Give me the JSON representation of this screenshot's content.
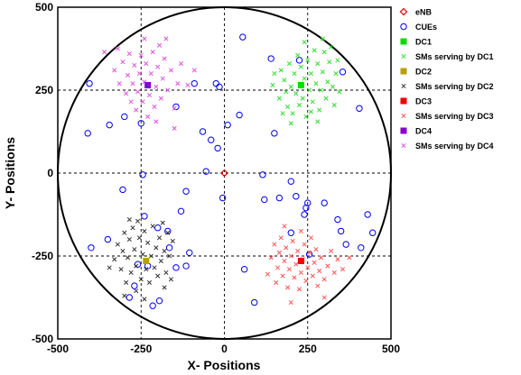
{
  "chart_data": {
    "type": "scatter",
    "xlabel": "X- Positions",
    "ylabel": "Y- Positions",
    "xlim": [
      -500,
      500
    ],
    "ylim": [
      -500,
      500
    ],
    "xticks": [
      -500,
      -250,
      0,
      250,
      500
    ],
    "yticks": [
      500,
      250,
      0,
      -250,
      -500
    ],
    "grid": "dashed at 0 and ±250",
    "boundary_circle": {
      "center": [
        0,
        0
      ],
      "radius": 500
    },
    "legend_position": "right, outside plot",
    "series": [
      {
        "name": "eNB",
        "marker": "diamond-open",
        "color": "#e60000",
        "points": [
          [
            0,
            0
          ]
        ]
      },
      {
        "name": "CUEs",
        "marker": "circle-open",
        "color": "#0000ee",
        "points": [
          [
            -410,
            120
          ],
          [
            -405,
            270
          ],
          [
            -400,
            -225
          ],
          [
            -350,
            -200
          ],
          [
            -345,
            145
          ],
          [
            -305,
            -50
          ],
          [
            -300,
            170
          ],
          [
            -285,
            -375
          ],
          [
            -270,
            -340
          ],
          [
            -250,
            150
          ],
          [
            -245,
            -5
          ],
          [
            -240,
            -130
          ],
          [
            -230,
            -280
          ],
          [
            -215,
            -400
          ],
          [
            -200,
            -165
          ],
          [
            -195,
            -385
          ],
          [
            -170,
            -175
          ],
          [
            -165,
            -225
          ],
          [
            -145,
            -285
          ],
          [
            -145,
            200
          ],
          [
            -130,
            -115
          ],
          [
            -115,
            -55
          ],
          [
            -115,
            -280
          ],
          [
            -105,
            -240
          ],
          [
            -90,
            270
          ],
          [
            -65,
            125
          ],
          [
            -55,
            5
          ],
          [
            -40,
            100
          ],
          [
            -25,
            270
          ],
          [
            -20,
            75
          ],
          [
            -15,
            260
          ],
          [
            -5,
            -75
          ],
          [
            10,
            145
          ],
          [
            45,
            175
          ],
          [
            55,
            410
          ],
          [
            60,
            -290
          ],
          [
            90,
            -390
          ],
          [
            115,
            -5
          ],
          [
            120,
            -80
          ],
          [
            140,
            345
          ],
          [
            150,
            120
          ],
          [
            165,
            -75
          ],
          [
            200,
            -25
          ],
          [
            200,
            -180
          ],
          [
            215,
            -70
          ],
          [
            225,
            340
          ],
          [
            240,
            -125
          ],
          [
            245,
            -105
          ],
          [
            255,
            -245
          ],
          [
            250,
            -90
          ],
          [
            300,
            -90
          ],
          [
            350,
            -175
          ],
          [
            355,
            305
          ],
          [
            340,
            -140
          ],
          [
            365,
            -215
          ],
          [
            405,
            195
          ],
          [
            430,
            -125
          ],
          [
            410,
            -225
          ],
          [
            445,
            -180
          ],
          [
            -260,
            -275
          ]
        ]
      },
      {
        "name": "DC1",
        "marker": "square-filled",
        "color": "#00dd00",
        "points": [
          [
            230,
            265
          ]
        ]
      },
      {
        "name": "SMs serving by DC1",
        "marker": "x",
        "color": "#33dd33",
        "points": [
          [
            145,
            265
          ],
          [
            150,
            300
          ],
          [
            165,
            225
          ],
          [
            170,
            310
          ],
          [
            180,
            280
          ],
          [
            185,
            245
          ],
          [
            190,
            200
          ],
          [
            195,
            330
          ],
          [
            200,
            260
          ],
          [
            205,
            180
          ],
          [
            210,
            300
          ],
          [
            215,
            240
          ],
          [
            220,
            355
          ],
          [
            225,
            205
          ],
          [
            230,
            320
          ],
          [
            235,
            225
          ],
          [
            240,
            285
          ],
          [
            245,
            170
          ],
          [
            250,
            340
          ],
          [
            255,
            250
          ],
          [
            260,
            300
          ],
          [
            265,
            215
          ],
          [
            270,
            370
          ],
          [
            275,
            270
          ],
          [
            280,
            330
          ],
          [
            285,
            190
          ],
          [
            290,
            250
          ],
          [
            295,
            305
          ],
          [
            300,
            365
          ],
          [
            305,
            225
          ],
          [
            310,
            275
          ],
          [
            315,
            335
          ],
          [
            320,
            380
          ],
          [
            325,
            260
          ],
          [
            330,
            205
          ],
          [
            335,
            300
          ],
          [
            340,
            340
          ],
          [
            345,
            245
          ],
          [
            260,
            185
          ],
          [
            200,
            150
          ],
          [
            175,
            180
          ],
          [
            280,
            155
          ],
          [
            240,
            395
          ],
          [
            295,
            405
          ]
        ]
      },
      {
        "name": "DC2",
        "marker": "square-filled",
        "color": "#b8a000",
        "points": [
          [
            -235,
            -265
          ]
        ]
      },
      {
        "name": "SMs serving by DC2",
        "marker": "x",
        "color": "#333333",
        "points": [
          [
            -330,
            -260
          ],
          [
            -320,
            -215
          ],
          [
            -310,
            -290
          ],
          [
            -305,
            -235
          ],
          [
            -300,
            -180
          ],
          [
            -295,
            -330
          ],
          [
            -290,
            -255
          ],
          [
            -285,
            -200
          ],
          [
            -280,
            -300
          ],
          [
            -275,
            -165
          ],
          [
            -270,
            -230
          ],
          [
            -265,
            -280
          ],
          [
            -260,
            -145
          ],
          [
            -255,
            -195
          ],
          [
            -250,
            -320
          ],
          [
            -245,
            -245
          ],
          [
            -240,
            -175
          ],
          [
            -235,
            -290
          ],
          [
            -230,
            -210
          ],
          [
            -225,
            -330
          ],
          [
            -220,
            -250
          ],
          [
            -215,
            -160
          ],
          [
            -210,
            -285
          ],
          [
            -205,
            -225
          ],
          [
            -200,
            -310
          ],
          [
            -195,
            -195
          ],
          [
            -190,
            -265
          ],
          [
            -185,
            -150
          ],
          [
            -180,
            -235
          ],
          [
            -175,
            -300
          ],
          [
            -170,
            -180
          ],
          [
            -165,
            -250
          ],
          [
            -160,
            -320
          ],
          [
            -155,
            -205
          ],
          [
            -265,
            -355
          ],
          [
            -300,
            -370
          ],
          [
            -285,
            -140
          ],
          [
            -345,
            -285
          ],
          [
            -240,
            -380
          ],
          [
            -180,
            -345
          ]
        ]
      },
      {
        "name": "DC3",
        "marker": "square-filled",
        "color": "#ee0000",
        "points": [
          [
            230,
            -265
          ]
        ]
      },
      {
        "name": "SMs serving by DC3",
        "marker": "x",
        "color": "#ff5555",
        "points": [
          [
            130,
            -305
          ],
          [
            140,
            -255
          ],
          [
            150,
            -215
          ],
          [
            155,
            -330
          ],
          [
            160,
            -285
          ],
          [
            165,
            -240
          ],
          [
            170,
            -195
          ],
          [
            175,
            -310
          ],
          [
            180,
            -265
          ],
          [
            185,
            -225
          ],
          [
            190,
            -345
          ],
          [
            195,
            -290
          ],
          [
            200,
            -250
          ],
          [
            205,
            -205
          ],
          [
            210,
            -315
          ],
          [
            215,
            -275
          ],
          [
            220,
            -235
          ],
          [
            225,
            -350
          ],
          [
            230,
            -300
          ],
          [
            235,
            -260
          ],
          [
            240,
            -215
          ],
          [
            245,
            -325
          ],
          [
            250,
            -285
          ],
          [
            255,
            -240
          ],
          [
            260,
            -195
          ],
          [
            265,
            -310
          ],
          [
            270,
            -270
          ],
          [
            275,
            -230
          ],
          [
            280,
            -340
          ],
          [
            285,
            -295
          ],
          [
            290,
            -255
          ],
          [
            300,
            -320
          ],
          [
            310,
            -280
          ],
          [
            320,
            -235
          ],
          [
            330,
            -300
          ],
          [
            340,
            -260
          ],
          [
            355,
            -290
          ],
          [
            375,
            -255
          ],
          [
            180,
            -160
          ],
          [
            230,
            -175
          ],
          [
            300,
            -375
          ],
          [
            200,
            -390
          ]
        ]
      },
      {
        "name": "DC4",
        "marker": "square-filled",
        "color": "#8800cc",
        "points": [
          [
            -230,
            265
          ]
        ]
      },
      {
        "name": "SMs serving by DC4",
        "marker": "x",
        "color": "#dd55dd",
        "points": [
          [
            -360,
            365
          ],
          [
            -330,
            310
          ],
          [
            -315,
            270
          ],
          [
            -305,
            335
          ],
          [
            -295,
            240
          ],
          [
            -290,
            295
          ],
          [
            -285,
            360
          ],
          [
            -280,
            215
          ],
          [
            -275,
            270
          ],
          [
            -270,
            325
          ],
          [
            -265,
            190
          ],
          [
            -260,
            245
          ],
          [
            -255,
            300
          ],
          [
            -250,
            355
          ],
          [
            -245,
            215
          ],
          [
            -240,
            275
          ],
          [
            -235,
            330
          ],
          [
            -230,
            170
          ],
          [
            -225,
            235
          ],
          [
            -220,
            300
          ],
          [
            -215,
            365
          ],
          [
            -210,
            200
          ],
          [
            -205,
            260
          ],
          [
            -200,
            320
          ],
          [
            -195,
            385
          ],
          [
            -190,
            225
          ],
          [
            -185,
            285
          ],
          [
            -180,
            345
          ],
          [
            -170,
            250
          ],
          [
            -160,
            310
          ],
          [
            -150,
            195
          ],
          [
            -140,
            270
          ],
          [
            -130,
            330
          ],
          [
            -110,
            265
          ],
          [
            -90,
            310
          ],
          [
            -205,
            155
          ],
          [
            -240,
            405
          ],
          [
            -175,
            405
          ],
          [
            -320,
            375
          ],
          [
            -150,
            135
          ]
        ]
      }
    ]
  }
}
